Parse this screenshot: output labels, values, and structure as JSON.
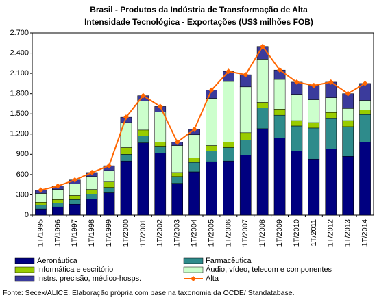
{
  "chart_data": {
    "type": "bar",
    "title": "Brasil - Produtos da Indústria de Transformação de Alta",
    "subtitle": "Intensidade Tecnológica - Exportações (US$ milhões FOB)",
    "source": "Fonte: Secex/ALICE. Elaboração própria com base na taxonomia da OCDE/ Standatabase.",
    "categories": [
      "1T/1995",
      "1T/1996",
      "1T/1997",
      "1T/1998",
      "1T/1999",
      "1T/2000",
      "1T/2001",
      "1T/2002",
      "1T/2003",
      "1T/2004",
      "1T/2005",
      "1T/2006",
      "1T/2007",
      "1T/2008",
      "1T/2009",
      "1T/2010",
      "1T/2011",
      "1T/2012",
      "1T/2013",
      "1T/2014"
    ],
    "series": [
      {
        "name": "Aeronáutica",
        "type": "bar",
        "color": "#000080",
        "values": [
          90,
          120,
          160,
          240,
          330,
          800,
          1070,
          920,
          470,
          640,
          790,
          800,
          890,
          1280,
          1140,
          950,
          830,
          980,
          870,
          1080
        ]
      },
      {
        "name": "Farmacêutica",
        "type": "bar",
        "color": "#2e8b8b",
        "values": [
          60,
          60,
          70,
          70,
          80,
          100,
          100,
          100,
          100,
          140,
          160,
          200,
          220,
          310,
          340,
          370,
          460,
          450,
          440,
          410
        ]
      },
      {
        "name": "Informática e escritório",
        "type": "bar",
        "color": "#99cc00",
        "values": [
          40,
          50,
          60,
          70,
          80,
          100,
          90,
          60,
          60,
          70,
          80,
          80,
          110,
          80,
          90,
          80,
          80,
          90,
          90,
          70
        ]
      },
      {
        "name": "Áudio, vídeo, telecom e componentes",
        "type": "bar",
        "color": "#ccffcc",
        "values": [
          130,
          150,
          170,
          190,
          170,
          370,
          430,
          450,
          400,
          340,
          700,
          900,
          680,
          640,
          440,
          390,
          340,
          220,
          180,
          140
        ]
      },
      {
        "name": "Instrs. precisão, médico-hosps.",
        "type": "bar",
        "color": "#3b3b9c",
        "values": [
          50,
          50,
          60,
          60,
          70,
          80,
          80,
          80,
          50,
          80,
          120,
          150,
          180,
          190,
          140,
          180,
          210,
          230,
          220,
          250
        ]
      },
      {
        "name": "Alta",
        "type": "line",
        "color": "#ff6600",
        "values": [
          370,
          430,
          520,
          630,
          730,
          1450,
          1770,
          1610,
          1080,
          1270,
          1850,
          2130,
          2080,
          2500,
          2150,
          1970,
          1920,
          1970,
          1800,
          1950
        ]
      }
    ],
    "ylim": [
      0,
      2700
    ],
    "yticks": [
      0,
      300,
      600,
      900,
      {
        "value": 1200,
        "label": "1.200"
      },
      {
        "value": 1500,
        "label": "1.500"
      },
      {
        "value": 1800,
        "label": "1.800"
      },
      {
        "value": 2100,
        "label": "2.100"
      },
      {
        "value": 2400,
        "label": "2.400"
      },
      {
        "value": 2700,
        "label": "2.700"
      }
    ],
    "grid": false
  }
}
